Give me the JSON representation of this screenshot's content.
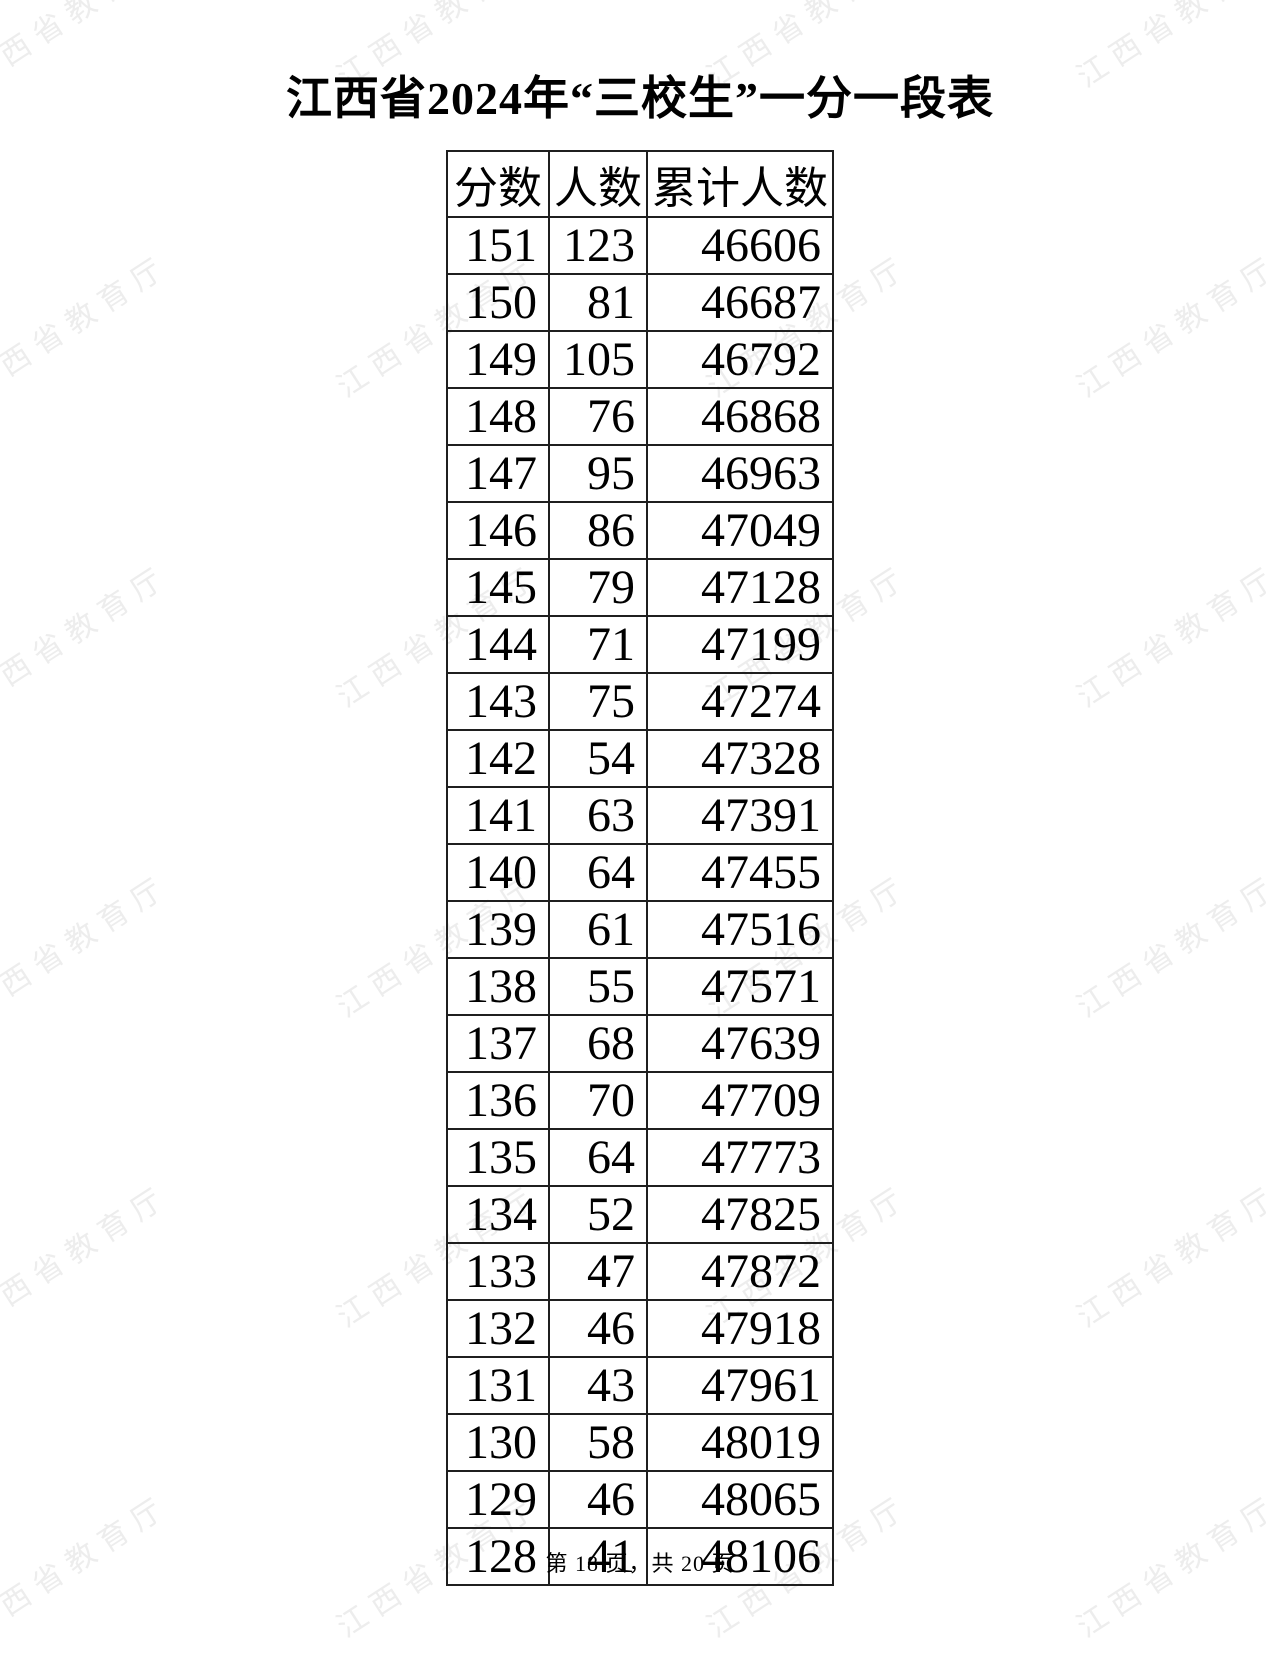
{
  "page": {
    "title": "江西省2024年“三校生”一分一段表",
    "footer": "第 18 页，共 20 页",
    "watermark": {
      "text": "江西省教育厅",
      "color": "#ededed"
    }
  },
  "table": {
    "headers": [
      "分数",
      "人数",
      "累计人数"
    ],
    "rows": [
      [
        151,
        123,
        46606
      ],
      [
        150,
        81,
        46687
      ],
      [
        149,
        105,
        46792
      ],
      [
        148,
        76,
        46868
      ],
      [
        147,
        95,
        46963
      ],
      [
        146,
        86,
        47049
      ],
      [
        145,
        79,
        47128
      ],
      [
        144,
        71,
        47199
      ],
      [
        143,
        75,
        47274
      ],
      [
        142,
        54,
        47328
      ],
      [
        141,
        63,
        47391
      ],
      [
        140,
        64,
        47455
      ],
      [
        139,
        61,
        47516
      ],
      [
        138,
        55,
        47571
      ],
      [
        137,
        68,
        47639
      ],
      [
        136,
        70,
        47709
      ],
      [
        135,
        64,
        47773
      ],
      [
        134,
        52,
        47825
      ],
      [
        133,
        47,
        47872
      ],
      [
        132,
        46,
        47918
      ],
      [
        131,
        43,
        47961
      ],
      [
        130,
        58,
        48019
      ],
      [
        129,
        46,
        48065
      ],
      [
        128,
        41,
        48106
      ]
    ]
  }
}
